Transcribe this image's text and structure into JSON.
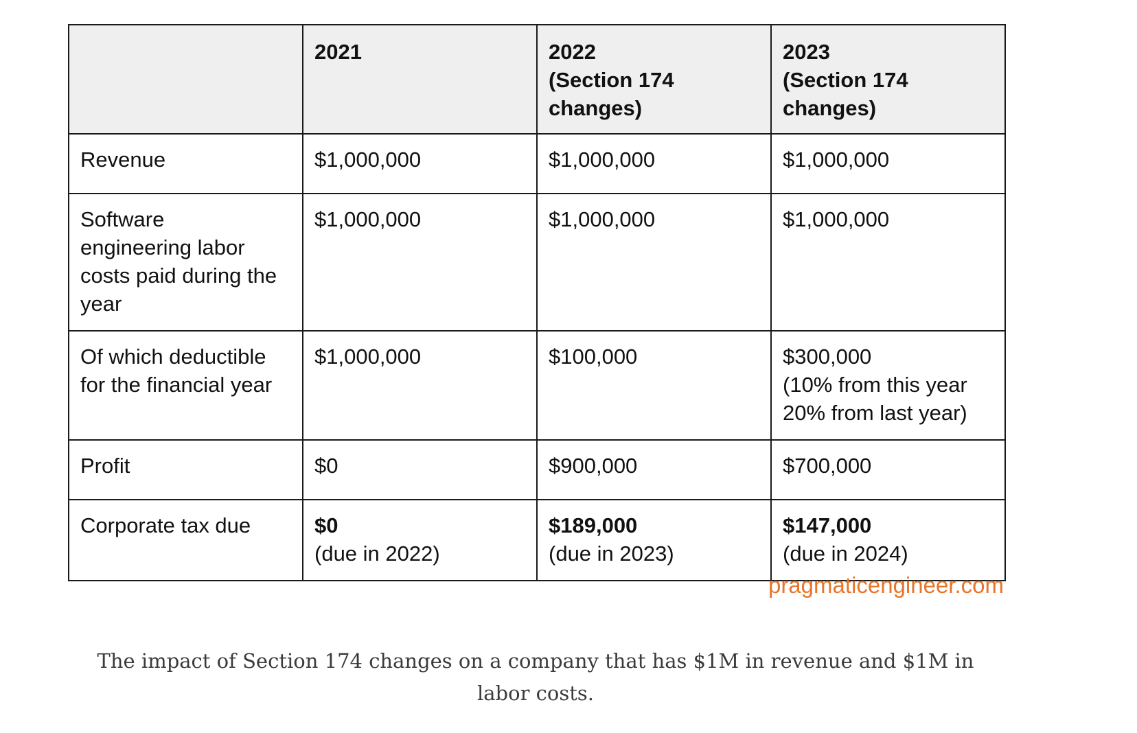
{
  "table": {
    "headers": [
      "",
      "2021",
      [
        "2022",
        "(Section 174",
        "changes)"
      ],
      [
        "2023",
        "(Section 174",
        "changes)"
      ]
    ],
    "rows": {
      "revenue": {
        "label": "Revenue",
        "values": [
          "$1,000,000",
          "$1,000,000",
          "$1,000,000"
        ]
      },
      "labor": {
        "label": [
          "Software",
          "engineering labor",
          "costs paid during the",
          "year"
        ],
        "values": [
          "$1,000,000",
          "$1,000,000",
          "$1,000,000"
        ]
      },
      "deductible": {
        "label": [
          "Of which deductible",
          "for the financial year"
        ],
        "values": [
          [
            "$1,000,000"
          ],
          [
            "$100,000"
          ],
          [
            "$300,000",
            "(10% from this year",
            "20% from last year)"
          ]
        ]
      },
      "profit": {
        "label": "Profit",
        "values": [
          "$0",
          "$900,000",
          "$700,000"
        ]
      },
      "tax": {
        "label": "Corporate tax due",
        "values": [
          {
            "amount": "$0",
            "note": "(due in 2022)"
          },
          {
            "amount": "$189,000",
            "note": "(due in 2023)"
          },
          {
            "amount": "$147,000",
            "note": "(due in 2024)"
          }
        ]
      }
    }
  },
  "watermark": "pragmaticengineer.com",
  "caption": "The impact of Section 174 changes on a company that has $1M in revenue and $1M in labor costs."
}
